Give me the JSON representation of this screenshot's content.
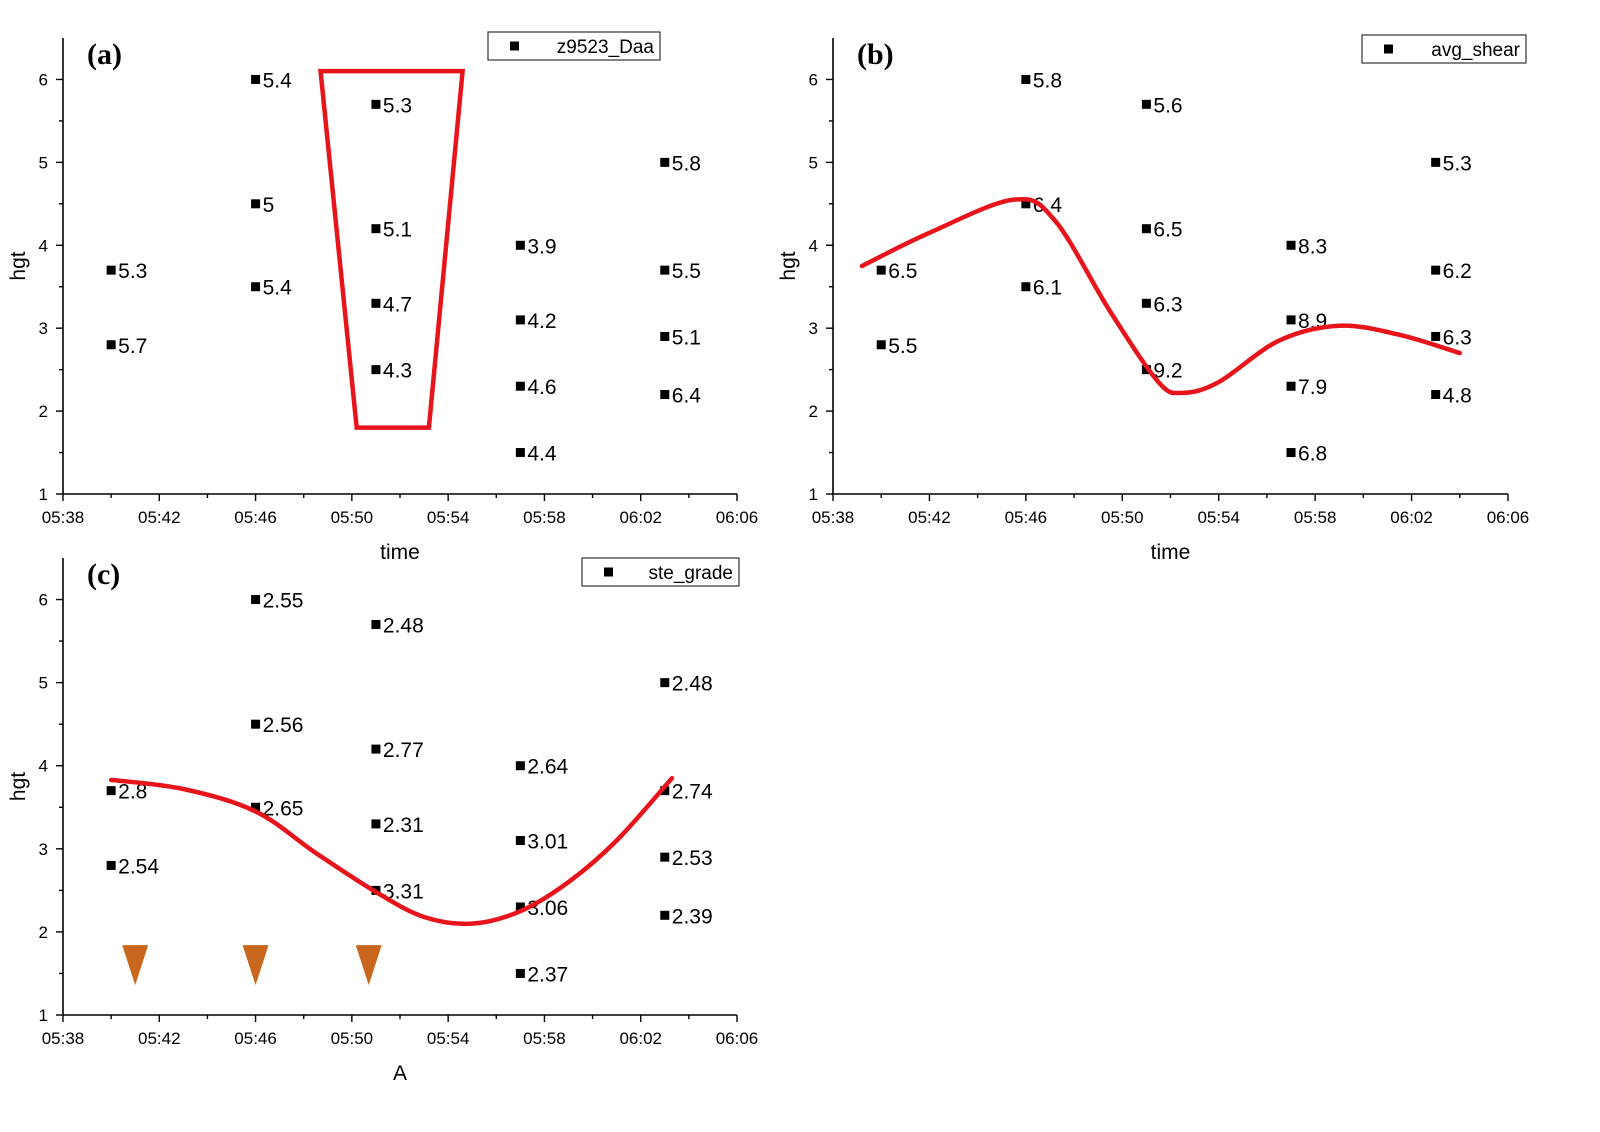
{
  "chart_data": [
    {
      "panel": "(a)",
      "type": "scatter",
      "xlabel": "time",
      "ylabel": "hgt",
      "xlim": [
        "05:38",
        "06:06"
      ],
      "ylim": [
        1,
        6.5
      ],
      "xticks": [
        "05:38",
        "05:42",
        "05:46",
        "05:50",
        "05:54",
        "05:58",
        "06:02",
        "06:06"
      ],
      "yticks": [
        1,
        2,
        3,
        4,
        5,
        6
      ],
      "legend": {
        "position": "top-right",
        "entries": [
          "z9523_Daa"
        ]
      },
      "series": [
        {
          "name": "z9523_Daa",
          "points": [
            {
              "x": "05:40",
              "y": 3.7,
              "label": "5.3"
            },
            {
              "x": "05:40",
              "y": 2.8,
              "label": "5.7"
            },
            {
              "x": "05:46",
              "y": 6.0,
              "label": "5.4"
            },
            {
              "x": "05:46",
              "y": 4.5,
              "label": "5"
            },
            {
              "x": "05:46",
              "y": 3.5,
              "label": "5.4"
            },
            {
              "x": "05:51",
              "y": 5.7,
              "label": "5.3"
            },
            {
              "x": "05:51",
              "y": 4.2,
              "label": "5.1"
            },
            {
              "x": "05:51",
              "y": 3.3,
              "label": "4.7"
            },
            {
              "x": "05:51",
              "y": 2.5,
              "label": "4.3"
            },
            {
              "x": "05:57",
              "y": 4.0,
              "label": "3.9"
            },
            {
              "x": "05:57",
              "y": 3.1,
              "label": "4.2"
            },
            {
              "x": "05:57",
              "y": 2.3,
              "label": "4.6"
            },
            {
              "x": "05:57",
              "y": 1.5,
              "label": "4.4"
            },
            {
              "x": "06:03",
              "y": 5.0,
              "label": "5.8"
            },
            {
              "x": "06:03",
              "y": 3.7,
              "label": "5.5"
            },
            {
              "x": "06:03",
              "y": 2.9,
              "label": "5.1"
            },
            {
              "x": "06:03",
              "y": 2.2,
              "label": "6.4"
            }
          ]
        }
      ],
      "annotation": {
        "shape": "trapezoid",
        "color": "#e8141b",
        "corners": [
          {
            "x": "05:48.7",
            "y": 6.1
          },
          {
            "x": "05:54.6",
            "y": 6.1
          },
          {
            "x": "05:53.2",
            "y": 1.8
          },
          {
            "x": "05:50.2",
            "y": 1.8
          }
        ]
      }
    },
    {
      "panel": "(b)",
      "type": "scatter",
      "xlabel": "time",
      "ylabel": "hgt",
      "xlim": [
        "05:38",
        "06:06"
      ],
      "ylim": [
        1,
        6.5
      ],
      "xticks": [
        "05:38",
        "05:42",
        "05:46",
        "05:50",
        "05:54",
        "05:58",
        "06:02",
        "06:06"
      ],
      "yticks": [
        1,
        2,
        3,
        4,
        5,
        6
      ],
      "legend": {
        "position": "top-right",
        "entries": [
          "avg_shear"
        ]
      },
      "series": [
        {
          "name": "avg_shear",
          "points": [
            {
              "x": "05:40",
              "y": 3.7,
              "label": "6.5"
            },
            {
              "x": "05:40",
              "y": 2.8,
              "label": "5.5"
            },
            {
              "x": "05:46",
              "y": 6.0,
              "label": "5.8"
            },
            {
              "x": "05:46",
              "y": 4.5,
              "label": "6.4"
            },
            {
              "x": "05:46",
              "y": 3.5,
              "label": "6.1"
            },
            {
              "x": "05:51",
              "y": 5.7,
              "label": "5.6"
            },
            {
              "x": "05:51",
              "y": 4.2,
              "label": "6.5"
            },
            {
              "x": "05:51",
              "y": 3.3,
              "label": "6.3"
            },
            {
              "x": "05:51",
              "y": 2.5,
              "label": "9.2"
            },
            {
              "x": "05:57",
              "y": 4.0,
              "label": "8.3"
            },
            {
              "x": "05:57",
              "y": 3.1,
              "label": "8.9"
            },
            {
              "x": "05:57",
              "y": 2.3,
              "label": "7.9"
            },
            {
              "x": "05:57",
              "y": 1.5,
              "label": "6.8"
            },
            {
              "x": "06:03",
              "y": 5.0,
              "label": "5.3"
            },
            {
              "x": "06:03",
              "y": 3.7,
              "label": "6.2"
            },
            {
              "x": "06:03",
              "y": 2.9,
              "label": "6.3"
            },
            {
              "x": "06:03",
              "y": 2.2,
              "label": "4.8"
            }
          ]
        }
      ],
      "curve": {
        "color": "#e8141b",
        "points": [
          {
            "x": "05:39.2",
            "y": 3.75
          },
          {
            "x": "05:42",
            "y": 4.15
          },
          {
            "x": "05:45.5",
            "y": 4.55
          },
          {
            "x": "05:47.2",
            "y": 4.3
          },
          {
            "x": "05:49.5",
            "y": 3.2
          },
          {
            "x": "05:51.5",
            "y": 2.35
          },
          {
            "x": "05:52.5",
            "y": 2.22
          },
          {
            "x": "05:54",
            "y": 2.35
          },
          {
            "x": "05:56.5",
            "y": 2.85
          },
          {
            "x": "05:59",
            "y": 3.03
          },
          {
            "x": "06:01.5",
            "y": 2.92
          },
          {
            "x": "06:04",
            "y": 2.7
          }
        ]
      }
    },
    {
      "panel": "(c)",
      "type": "scatter",
      "xlabel": "A",
      "ylabel": "hgt",
      "xlim": [
        "05:38",
        "06:06"
      ],
      "ylim": [
        1,
        6.5
      ],
      "xticks": [
        "05:38",
        "05:42",
        "05:46",
        "05:50",
        "05:54",
        "05:58",
        "06:02",
        "06:06"
      ],
      "yticks": [
        1,
        2,
        3,
        4,
        5,
        6
      ],
      "legend": {
        "position": "top-right",
        "entries": [
          "ste_grade"
        ]
      },
      "series": [
        {
          "name": "ste_grade",
          "points": [
            {
              "x": "05:40",
              "y": 3.7,
              "label": "2.8"
            },
            {
              "x": "05:40",
              "y": 2.8,
              "label": "2.54"
            },
            {
              "x": "05:46",
              "y": 6.0,
              "label": "2.55"
            },
            {
              "x": "05:46",
              "y": 4.5,
              "label": "2.56"
            },
            {
              "x": "05:46",
              "y": 3.5,
              "label": "2.65"
            },
            {
              "x": "05:51",
              "y": 5.7,
              "label": "2.48"
            },
            {
              "x": "05:51",
              "y": 4.2,
              "label": "2.77"
            },
            {
              "x": "05:51",
              "y": 3.3,
              "label": "2.31"
            },
            {
              "x": "05:51",
              "y": 2.5,
              "label": "3.31"
            },
            {
              "x": "05:57",
              "y": 4.0,
              "label": "2.64"
            },
            {
              "x": "05:57",
              "y": 3.1,
              "label": "3.01"
            },
            {
              "x": "05:57",
              "y": 2.3,
              "label": "3.06"
            },
            {
              "x": "05:57",
              "y": 1.5,
              "label": "2.37"
            },
            {
              "x": "06:03",
              "y": 5.0,
              "label": "2.48"
            },
            {
              "x": "06:03",
              "y": 3.7,
              "label": "2.74"
            },
            {
              "x": "06:03",
              "y": 2.9,
              "label": "2.53"
            },
            {
              "x": "06:03",
              "y": 2.2,
              "label": "2.39"
            }
          ]
        }
      ],
      "curve": {
        "color": "#e8141b",
        "points": [
          {
            "x": "05:40",
            "y": 3.83
          },
          {
            "x": "05:43",
            "y": 3.72
          },
          {
            "x": "05:46",
            "y": 3.45
          },
          {
            "x": "05:48.5",
            "y": 2.95
          },
          {
            "x": "05:51",
            "y": 2.48
          },
          {
            "x": "05:53",
            "y": 2.18
          },
          {
            "x": "05:55",
            "y": 2.1
          },
          {
            "x": "05:57",
            "y": 2.25
          },
          {
            "x": "05:59",
            "y": 2.6
          },
          {
            "x": "06:01",
            "y": 3.1
          },
          {
            "x": "06:03.3",
            "y": 3.85
          }
        ]
      },
      "markers": {
        "shape": "triangle-down",
        "color": "#c9661e",
        "positions": [
          {
            "x": "05:41",
            "y": 1.6
          },
          {
            "x": "05:46",
            "y": 1.6
          },
          {
            "x": "05:50.7",
            "y": 1.6
          }
        ]
      }
    }
  ]
}
